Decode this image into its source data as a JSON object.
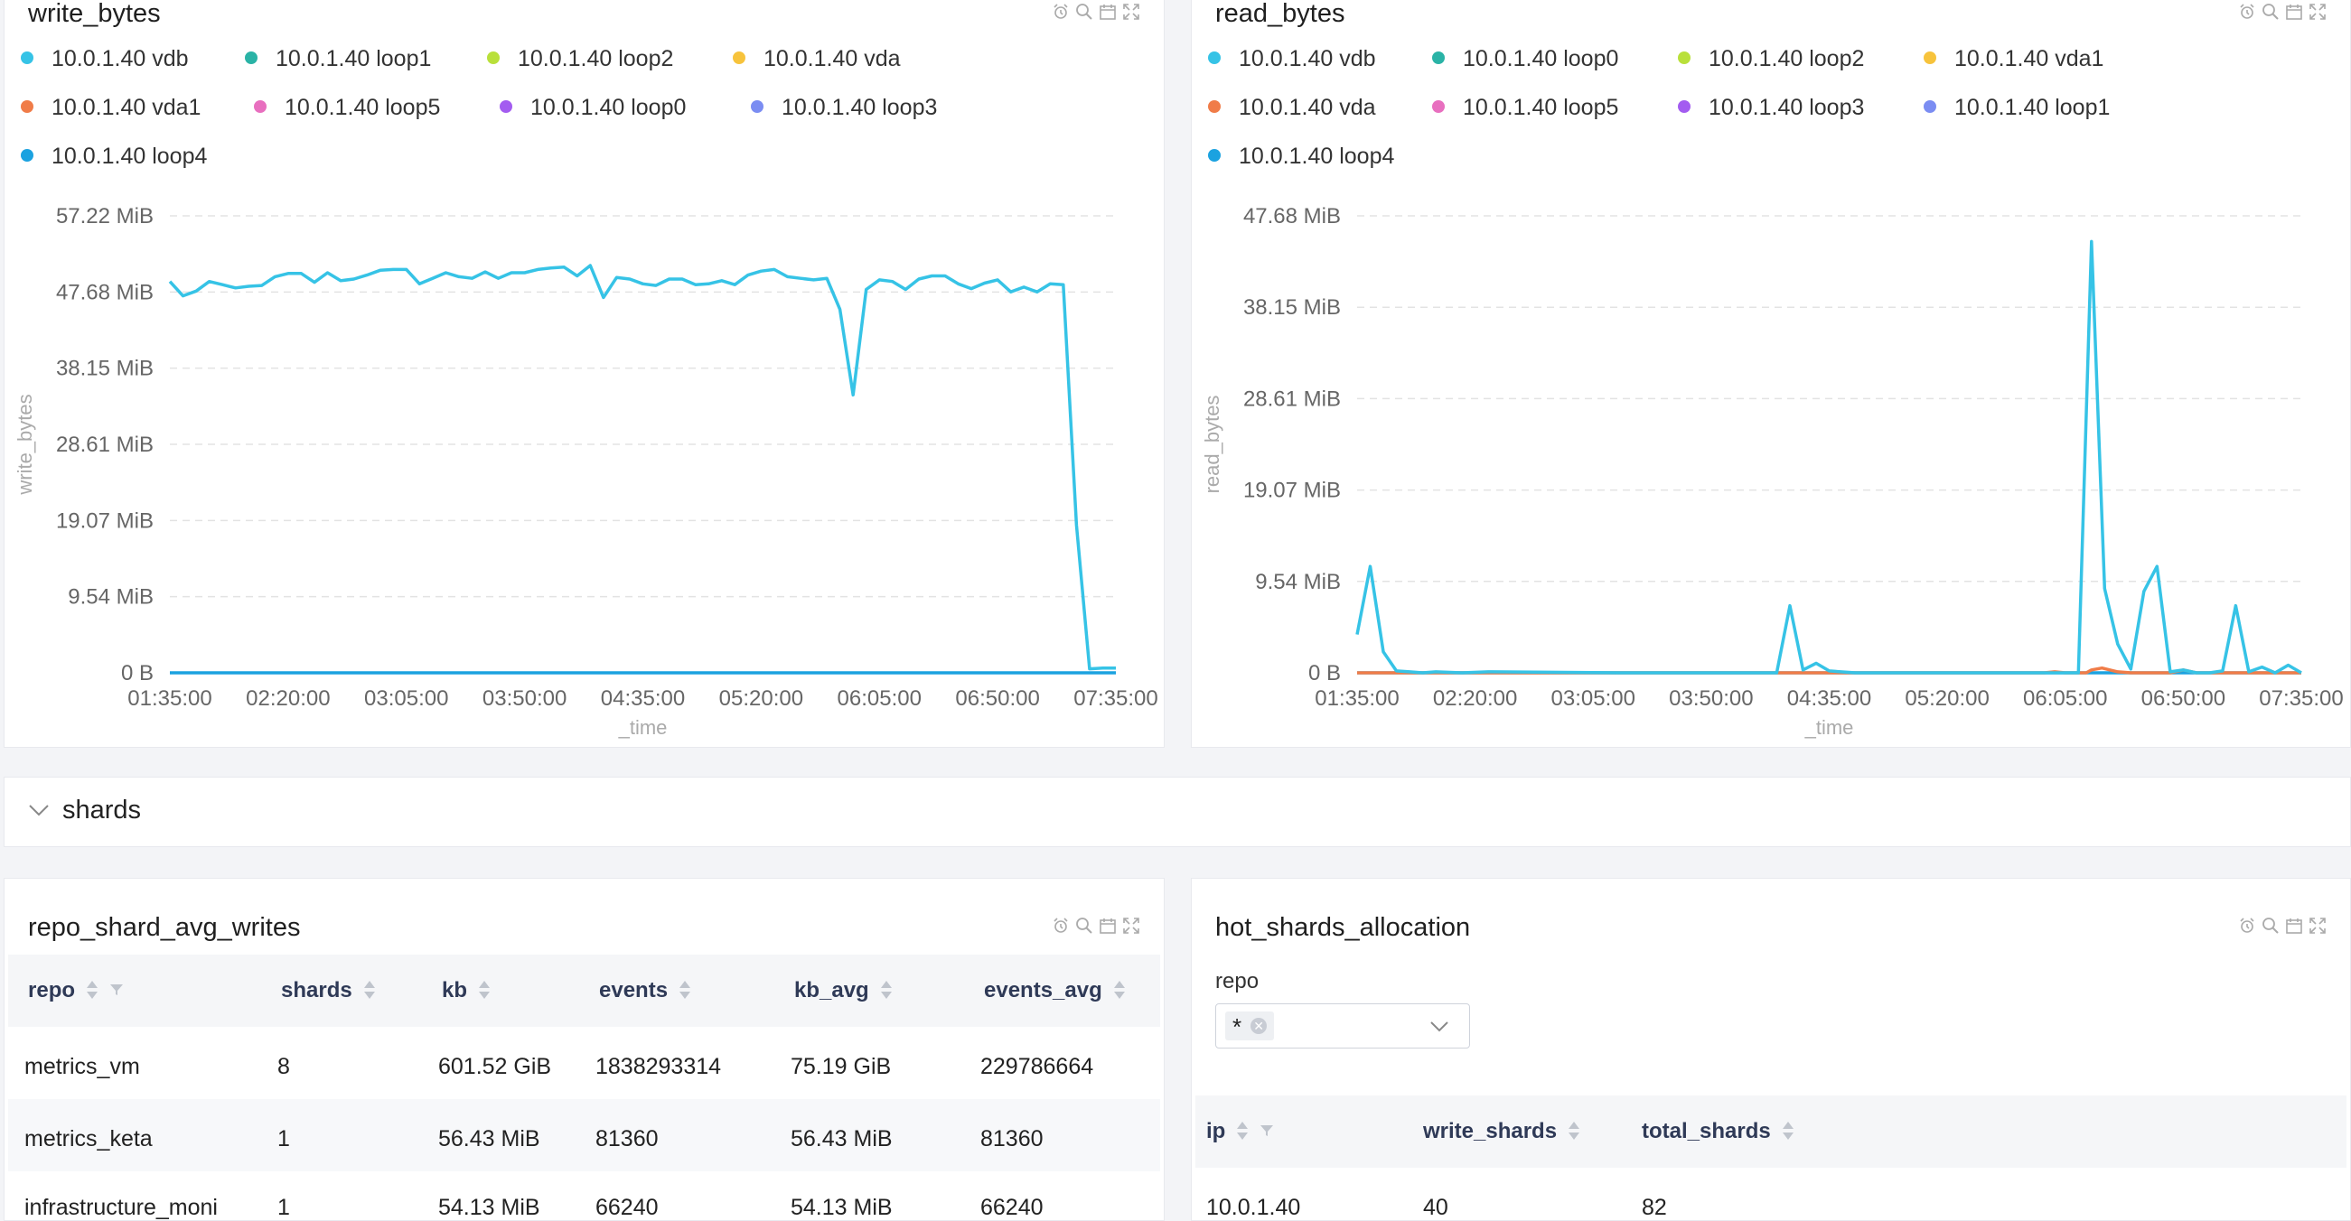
{
  "write_panel": {
    "title": "write_bytes",
    "legend": [
      {
        "name": "10.0.1.40 vdb",
        "color": "#36c3e6"
      },
      {
        "name": "10.0.1.40 loop1",
        "color": "#2ab3a6"
      },
      {
        "name": "10.0.1.40 loop2",
        "color": "#b9e03b"
      },
      {
        "name": "10.0.1.40 vda",
        "color": "#f7c33c"
      },
      {
        "name": "10.0.1.40 vda1",
        "color": "#f07c48"
      },
      {
        "name": "10.0.1.40 loop5",
        "color": "#e86fbf"
      },
      {
        "name": "10.0.1.40 loop0",
        "color": "#a35cf0"
      },
      {
        "name": "10.0.1.40 loop3",
        "color": "#7b8df2"
      },
      {
        "name": "10.0.1.40 loop4",
        "color": "#1ba2e0"
      }
    ]
  },
  "read_panel": {
    "title": "read_bytes",
    "legend": [
      {
        "name": "10.0.1.40 vdb",
        "color": "#36c3e6"
      },
      {
        "name": "10.0.1.40 loop0",
        "color": "#2ab3a6"
      },
      {
        "name": "10.0.1.40 loop2",
        "color": "#b9e03b"
      },
      {
        "name": "10.0.1.40 vda1",
        "color": "#f7c33c"
      },
      {
        "name": "10.0.1.40 vda",
        "color": "#f07c48"
      },
      {
        "name": "10.0.1.40 loop5",
        "color": "#e86fbf"
      },
      {
        "name": "10.0.1.40 loop3",
        "color": "#a35cf0"
      },
      {
        "name": "10.0.1.40 loop1",
        "color": "#7b8df2"
      },
      {
        "name": "10.0.1.40 loop4",
        "color": "#1ba2e0"
      }
    ]
  },
  "chart_data": [
    {
      "type": "line",
      "title": "write_bytes",
      "xlabel": "_time",
      "ylabel": "write_bytes",
      "ylim": [
        0,
        57.22
      ],
      "y_ticks": [
        "0 B",
        "9.54 MiB",
        "19.07 MiB",
        "28.61 MiB",
        "38.15 MiB",
        "47.68 MiB",
        "57.22 MiB"
      ],
      "x_ticks": [
        "01:35:00",
        "02:20:00",
        "03:05:00",
        "03:50:00",
        "04:35:00",
        "05:20:00",
        "06:05:00",
        "06:50:00",
        "07:35:00"
      ],
      "x_range": [
        0,
        360
      ],
      "grid": true,
      "legend_position": "top",
      "series": [
        {
          "name": "10.0.1.40 vdb",
          "color": "#36c3e6",
          "x": [
            0,
            5,
            10,
            15,
            20,
            25,
            30,
            35,
            40,
            45,
            50,
            55,
            60,
            65,
            70,
            75,
            80,
            85,
            90,
            95,
            100,
            105,
            110,
            115,
            120,
            125,
            130,
            135,
            140,
            145,
            150,
            155,
            160,
            165,
            170,
            175,
            180,
            185,
            190,
            195,
            200,
            205,
            210,
            215,
            220,
            225,
            230,
            235,
            240,
            245,
            250,
            255,
            260,
            265,
            270,
            275,
            280,
            285,
            290,
            295,
            300,
            305,
            310,
            315,
            320,
            325,
            330,
            335,
            340,
            345,
            350,
            355,
            360
          ],
          "y": [
            49.0,
            47.2,
            47.8,
            49.0,
            48.6,
            48.2,
            48.4,
            48.5,
            49.6,
            50.0,
            50.0,
            48.9,
            50.1,
            49.1,
            49.3,
            49.8,
            50.4,
            50.5,
            50.5,
            48.7,
            49.4,
            50.1,
            49.6,
            49.4,
            50.2,
            49.4,
            50.1,
            50.1,
            50.5,
            50.7,
            50.8,
            49.7,
            51.0,
            47.0,
            49.5,
            49.3,
            48.7,
            48.5,
            49.3,
            49.3,
            48.6,
            48.7,
            49.1,
            48.6,
            49.8,
            50.3,
            50.5,
            49.6,
            49.4,
            49.2,
            49.4,
            45.5,
            34.8,
            48.0,
            49.2,
            49.0,
            48.0,
            49.3,
            49.7,
            49.7,
            48.7,
            48.1,
            48.8,
            49.2,
            47.7,
            48.3,
            47.7,
            48.7,
            48.6,
            18.5,
            0.5,
            0.6,
            0.6
          ]
        },
        {
          "name": "10.0.1.40 loop4",
          "color": "#1ba2e0",
          "x": [
            0,
            360
          ],
          "y": [
            0,
            0
          ]
        }
      ]
    },
    {
      "type": "line",
      "title": "read_bytes",
      "xlabel": "_time",
      "ylabel": "read_bytes",
      "ylim": [
        0,
        47.68
      ],
      "y_ticks": [
        "0 B",
        "9.54 MiB",
        "19.07 MiB",
        "28.61 MiB",
        "38.15 MiB",
        "47.68 MiB"
      ],
      "x_ticks": [
        "01:35:00",
        "02:20:00",
        "03:05:00",
        "03:50:00",
        "04:35:00",
        "05:20:00",
        "06:05:00",
        "06:50:00",
        "07:35:00"
      ],
      "x_range": [
        0,
        360
      ],
      "grid": true,
      "legend_position": "top",
      "series": [
        {
          "name": "10.0.1.40 vdb",
          "color": "#36c3e6",
          "x": [
            0,
            5,
            10,
            15,
            20,
            25,
            30,
            40,
            50,
            100,
            150,
            160,
            165,
            170,
            175,
            180,
            190,
            200,
            250,
            260,
            275,
            280,
            285,
            290,
            295,
            300,
            305,
            310,
            315,
            320,
            325,
            330,
            335,
            340,
            345,
            350,
            355,
            360
          ],
          "y": [
            4.0,
            11.1,
            2.2,
            0.2,
            0.1,
            0,
            0.1,
            0,
            0.1,
            0,
            0,
            0,
            7.0,
            0.3,
            1.0,
            0.2,
            0,
            0,
            0,
            0,
            0,
            45.0,
            8.8,
            3.0,
            0.4,
            8.5,
            11.1,
            0.1,
            0.3,
            0,
            0,
            0.2,
            7.0,
            0.1,
            0.6,
            0,
            0.8,
            0
          ]
        },
        {
          "name": "10.0.1.40 vda",
          "color": "#f07c48",
          "x": [
            0,
            260,
            262,
            266,
            270,
            274,
            278,
            280,
            284,
            290,
            295,
            300,
            305,
            310,
            315,
            320,
            325,
            330,
            360
          ],
          "y": [
            0,
            0,
            0,
            0.1,
            0,
            0,
            0,
            0.3,
            0.5,
            0.1,
            0,
            0,
            0,
            0,
            0.3,
            0,
            0,
            0,
            0
          ]
        },
        {
          "name": "10.0.1.40 loop4",
          "color": "#1ba2e0",
          "x": [
            0,
            360
          ],
          "y": [
            0,
            0
          ]
        }
      ]
    }
  ],
  "section": {
    "label": "shards"
  },
  "repo_table": {
    "title": "repo_shard_avg_writes",
    "columns": [
      "repo",
      "shards",
      "kb",
      "events",
      "kb_avg",
      "events_avg"
    ],
    "rows": [
      [
        "metrics_vm",
        "8",
        "601.52 GiB",
        "1838293314",
        "75.19 GiB",
        "229786664"
      ],
      [
        "metrics_keta",
        "1",
        "56.43 MiB",
        "81360",
        "56.43 MiB",
        "81360"
      ],
      [
        "infrastructure_moni",
        "1",
        "54.13 MiB",
        "66240",
        "54.13 MiB",
        "66240"
      ]
    ]
  },
  "hot_shards": {
    "title": "hot_shards_allocation",
    "filter_label": "repo",
    "filter_value": "*",
    "columns": [
      "ip",
      "write_shards",
      "total_shards"
    ],
    "rows": [
      [
        "10.0.1.40",
        "40",
        "82"
      ]
    ]
  }
}
